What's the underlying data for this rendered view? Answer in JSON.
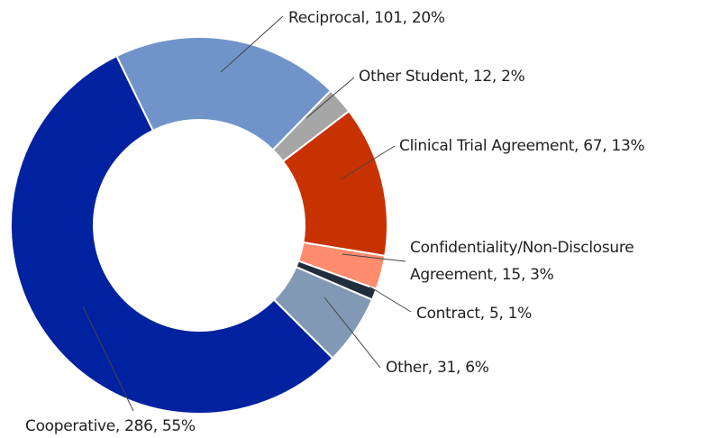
{
  "chart_data": {
    "type": "donut",
    "values": [
      101,
      12,
      67,
      15,
      5,
      31,
      286
    ],
    "value_labels": [
      "Reciprocal, 101, 20%",
      "Other Student, 12, 2%",
      "Clinical Trial Agreement, 67, 13%",
      "Confidentiality/Non-Disclosure Agreement, 15, 3%",
      "Contract, 5, 1%",
      "Other, 31, 6%",
      "Cooperative, 286, 55%"
    ],
    "colors": [
      "#7094c9",
      "#a6a6a6",
      "#c83200",
      "#ff8c6e",
      "#1f2d3d",
      "#8299b5",
      "#0022a0"
    ]
  }
}
